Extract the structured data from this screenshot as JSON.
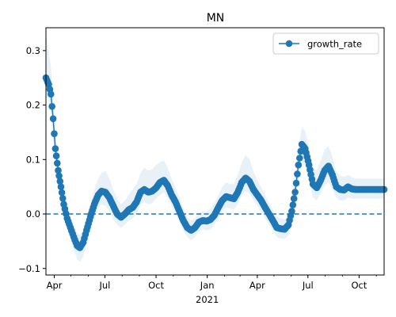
{
  "chart_data": {
    "type": "line",
    "title": "MN",
    "xlabel": "",
    "ylabel": "",
    "x_range": [
      "2020-03-17",
      "2021-11-15"
    ],
    "ylim": [
      -0.112,
      0.342
    ],
    "x_ticks": [
      {
        "date": "2020-04-01",
        "label": "Apr"
      },
      {
        "date": "2020-07-01",
        "label": "Jul"
      },
      {
        "date": "2020-10-01",
        "label": "Oct"
      },
      {
        "date": "2021-01-01",
        "label": "Jan"
      },
      {
        "date": "2021-04-01",
        "label": "Apr"
      },
      {
        "date": "2021-07-01",
        "label": "Jul"
      },
      {
        "date": "2021-10-01",
        "label": "Oct"
      }
    ],
    "x_year_label": {
      "date": "2021-01-01",
      "label": "2021"
    },
    "y_ticks": [
      {
        "value": -0.1,
        "label": "−0.1"
      },
      {
        "value": 0.0,
        "label": "0.0"
      },
      {
        "value": 0.1,
        "label": "0.1"
      },
      {
        "value": 0.2,
        "label": "0.2"
      },
      {
        "value": 0.3,
        "label": "0.3"
      }
    ],
    "reference_line": {
      "y": 0.0,
      "style": "dashed"
    },
    "legend": {
      "position": "top-right",
      "entries": [
        "growth_rate"
      ]
    },
    "series": [
      {
        "name": "growth_rate",
        "color": "#1f77b4",
        "band_color": "#1f77b4",
        "points": [
          {
            "x": "2020-03-17",
            "y": 0.25,
            "lo": 0.22,
            "hi": 0.33
          },
          {
            "x": "2020-03-22",
            "y": 0.238,
            "lo": 0.205,
            "hi": 0.3
          },
          {
            "x": "2020-03-26",
            "y": 0.22,
            "lo": 0.185,
            "hi": 0.27
          },
          {
            "x": "2020-03-30",
            "y": 0.175,
            "lo": 0.14,
            "hi": 0.215
          },
          {
            "x": "2020-04-03",
            "y": 0.12,
            "lo": 0.09,
            "hi": 0.15
          },
          {
            "x": "2020-04-08",
            "y": 0.08,
            "lo": 0.055,
            "hi": 0.105
          },
          {
            "x": "2020-04-13",
            "y": 0.05,
            "lo": 0.03,
            "hi": 0.072
          },
          {
            "x": "2020-04-18",
            "y": 0.018,
            "lo": 0.0,
            "hi": 0.038
          },
          {
            "x": "2020-04-24",
            "y": -0.008,
            "lo": -0.025,
            "hi": 0.01
          },
          {
            "x": "2020-04-30",
            "y": -0.025,
            "lo": -0.045,
            "hi": -0.005
          },
          {
            "x": "2020-05-06",
            "y": -0.042,
            "lo": -0.065,
            "hi": -0.02
          },
          {
            "x": "2020-05-12",
            "y": -0.058,
            "lo": -0.082,
            "hi": -0.035
          },
          {
            "x": "2020-05-17",
            "y": -0.062,
            "lo": -0.088,
            "hi": -0.038
          },
          {
            "x": "2020-05-23",
            "y": -0.052,
            "lo": -0.078,
            "hi": -0.028
          },
          {
            "x": "2020-05-29",
            "y": -0.03,
            "lo": -0.055,
            "hi": -0.005
          },
          {
            "x": "2020-06-05",
            "y": -0.005,
            "lo": -0.03,
            "hi": 0.02
          },
          {
            "x": "2020-06-12",
            "y": 0.018,
            "lo": -0.008,
            "hi": 0.045
          },
          {
            "x": "2020-06-19",
            "y": 0.035,
            "lo": 0.01,
            "hi": 0.065
          },
          {
            "x": "2020-06-25",
            "y": 0.042,
            "lo": 0.018,
            "hi": 0.075
          },
          {
            "x": "2020-07-02",
            "y": 0.04,
            "lo": 0.015,
            "hi": 0.08
          },
          {
            "x": "2020-07-09",
            "y": 0.03,
            "lo": 0.005,
            "hi": 0.065
          },
          {
            "x": "2020-07-16",
            "y": 0.015,
            "lo": -0.01,
            "hi": 0.045
          },
          {
            "x": "2020-07-23",
            "y": 0.0,
            "lo": -0.02,
            "hi": 0.028
          },
          {
            "x": "2020-07-30",
            "y": -0.006,
            "lo": -0.025,
            "hi": 0.018
          },
          {
            "x": "2020-08-06",
            "y": 0.0,
            "lo": -0.02,
            "hi": 0.025
          },
          {
            "x": "2020-08-13",
            "y": 0.008,
            "lo": -0.012,
            "hi": 0.035
          },
          {
            "x": "2020-08-20",
            "y": 0.012,
            "lo": -0.008,
            "hi": 0.045
          },
          {
            "x": "2020-08-27",
            "y": 0.022,
            "lo": 0.0,
            "hi": 0.055
          },
          {
            "x": "2020-09-03",
            "y": 0.04,
            "lo": 0.018,
            "hi": 0.075
          },
          {
            "x": "2020-09-10",
            "y": 0.045,
            "lo": 0.022,
            "hi": 0.085
          },
          {
            "x": "2020-09-17",
            "y": 0.04,
            "lo": 0.018,
            "hi": 0.08
          },
          {
            "x": "2020-09-24",
            "y": 0.042,
            "lo": 0.02,
            "hi": 0.082
          },
          {
            "x": "2020-10-01",
            "y": 0.048,
            "lo": 0.028,
            "hi": 0.09
          },
          {
            "x": "2020-10-08",
            "y": 0.058,
            "lo": 0.035,
            "hi": 0.095
          },
          {
            "x": "2020-10-15",
            "y": 0.062,
            "lo": 0.04,
            "hi": 0.098
          },
          {
            "x": "2020-10-22",
            "y": 0.052,
            "lo": 0.03,
            "hi": 0.085
          },
          {
            "x": "2020-10-29",
            "y": 0.035,
            "lo": 0.015,
            "hi": 0.065
          },
          {
            "x": "2020-11-05",
            "y": 0.022,
            "lo": 0.002,
            "hi": 0.048
          },
          {
            "x": "2020-11-12",
            "y": 0.005,
            "lo": -0.015,
            "hi": 0.03
          },
          {
            "x": "2020-11-19",
            "y": -0.012,
            "lo": -0.03,
            "hi": 0.01
          },
          {
            "x": "2020-11-26",
            "y": -0.025,
            "lo": -0.042,
            "hi": -0.005
          },
          {
            "x": "2020-12-03",
            "y": -0.03,
            "lo": -0.048,
            "hi": -0.012
          },
          {
            "x": "2020-12-10",
            "y": -0.025,
            "lo": -0.042,
            "hi": -0.008
          },
          {
            "x": "2020-12-17",
            "y": -0.015,
            "lo": -0.032,
            "hi": 0.002
          },
          {
            "x": "2020-12-24",
            "y": -0.012,
            "lo": -0.028,
            "hi": 0.005
          },
          {
            "x": "2020-12-31",
            "y": -0.013,
            "lo": -0.03,
            "hi": 0.004
          },
          {
            "x": "2021-01-07",
            "y": -0.01,
            "lo": -0.028,
            "hi": 0.01
          },
          {
            "x": "2021-01-14",
            "y": -0.002,
            "lo": -0.02,
            "hi": 0.02
          },
          {
            "x": "2021-01-21",
            "y": 0.012,
            "lo": -0.008,
            "hi": 0.035
          },
          {
            "x": "2021-01-28",
            "y": 0.025,
            "lo": 0.005,
            "hi": 0.05
          },
          {
            "x": "2021-02-04",
            "y": 0.032,
            "lo": 0.012,
            "hi": 0.058
          },
          {
            "x": "2021-02-11",
            "y": 0.03,
            "lo": 0.01,
            "hi": 0.055
          },
          {
            "x": "2021-02-18",
            "y": 0.028,
            "lo": 0.008,
            "hi": 0.055
          },
          {
            "x": "2021-02-25",
            "y": 0.04,
            "lo": 0.018,
            "hi": 0.072
          },
          {
            "x": "2021-03-04",
            "y": 0.058,
            "lo": 0.035,
            "hi": 0.095
          },
          {
            "x": "2021-03-11",
            "y": 0.066,
            "lo": 0.042,
            "hi": 0.108
          },
          {
            "x": "2021-03-18",
            "y": 0.06,
            "lo": 0.038,
            "hi": 0.1
          },
          {
            "x": "2021-03-25",
            "y": 0.045,
            "lo": 0.025,
            "hi": 0.078
          },
          {
            "x": "2021-04-01",
            "y": 0.035,
            "lo": 0.015,
            "hi": 0.062
          },
          {
            "x": "2021-04-08",
            "y": 0.025,
            "lo": 0.005,
            "hi": 0.05
          },
          {
            "x": "2021-04-15",
            "y": 0.012,
            "lo": -0.008,
            "hi": 0.035
          },
          {
            "x": "2021-04-22",
            "y": 0.0,
            "lo": -0.02,
            "hi": 0.02
          },
          {
            "x": "2021-04-29",
            "y": -0.012,
            "lo": -0.03,
            "hi": 0.008
          },
          {
            "x": "2021-05-06",
            "y": -0.025,
            "lo": -0.042,
            "hi": -0.005
          },
          {
            "x": "2021-05-13",
            "y": -0.027,
            "lo": -0.045,
            "hi": -0.008
          },
          {
            "x": "2021-05-20",
            "y": -0.028,
            "lo": -0.046,
            "hi": -0.01
          },
          {
            "x": "2021-05-27",
            "y": -0.02,
            "lo": -0.04,
            "hi": 0.0
          },
          {
            "x": "2021-06-02",
            "y": 0.005,
            "lo": -0.018,
            "hi": 0.03
          },
          {
            "x": "2021-06-08",
            "y": 0.04,
            "lo": 0.015,
            "hi": 0.07
          },
          {
            "x": "2021-06-14",
            "y": 0.09,
            "lo": 0.06,
            "hi": 0.12
          },
          {
            "x": "2021-06-20",
            "y": 0.128,
            "lo": 0.095,
            "hi": 0.16
          },
          {
            "x": "2021-06-26",
            "y": 0.12,
            "lo": 0.088,
            "hi": 0.152
          },
          {
            "x": "2021-07-03",
            "y": 0.09,
            "lo": 0.062,
            "hi": 0.122
          },
          {
            "x": "2021-07-10",
            "y": 0.055,
            "lo": 0.03,
            "hi": 0.085
          },
          {
            "x": "2021-07-17",
            "y": 0.048,
            "lo": 0.025,
            "hi": 0.08
          },
          {
            "x": "2021-07-24",
            "y": 0.062,
            "lo": 0.038,
            "hi": 0.098
          },
          {
            "x": "2021-07-31",
            "y": 0.08,
            "lo": 0.052,
            "hi": 0.118
          },
          {
            "x": "2021-08-07",
            "y": 0.088,
            "lo": 0.058,
            "hi": 0.125
          },
          {
            "x": "2021-08-14",
            "y": 0.072,
            "lo": 0.045,
            "hi": 0.105
          },
          {
            "x": "2021-08-21",
            "y": 0.05,
            "lo": 0.03,
            "hi": 0.078
          },
          {
            "x": "2021-08-28",
            "y": 0.045,
            "lo": 0.025,
            "hi": 0.07
          },
          {
            "x": "2021-09-04",
            "y": 0.044,
            "lo": 0.025,
            "hi": 0.068
          },
          {
            "x": "2021-09-11",
            "y": 0.05,
            "lo": 0.03,
            "hi": 0.072
          },
          {
            "x": "2021-09-18",
            "y": 0.046,
            "lo": 0.028,
            "hi": 0.068
          },
          {
            "x": "2021-09-25",
            "y": 0.045,
            "lo": 0.028,
            "hi": 0.065
          },
          {
            "x": "2021-10-15",
            "y": 0.045,
            "lo": 0.028,
            "hi": 0.065
          },
          {
            "x": "2021-11-15",
            "y": 0.045,
            "lo": 0.028,
            "hi": 0.065
          }
        ]
      }
    ]
  }
}
